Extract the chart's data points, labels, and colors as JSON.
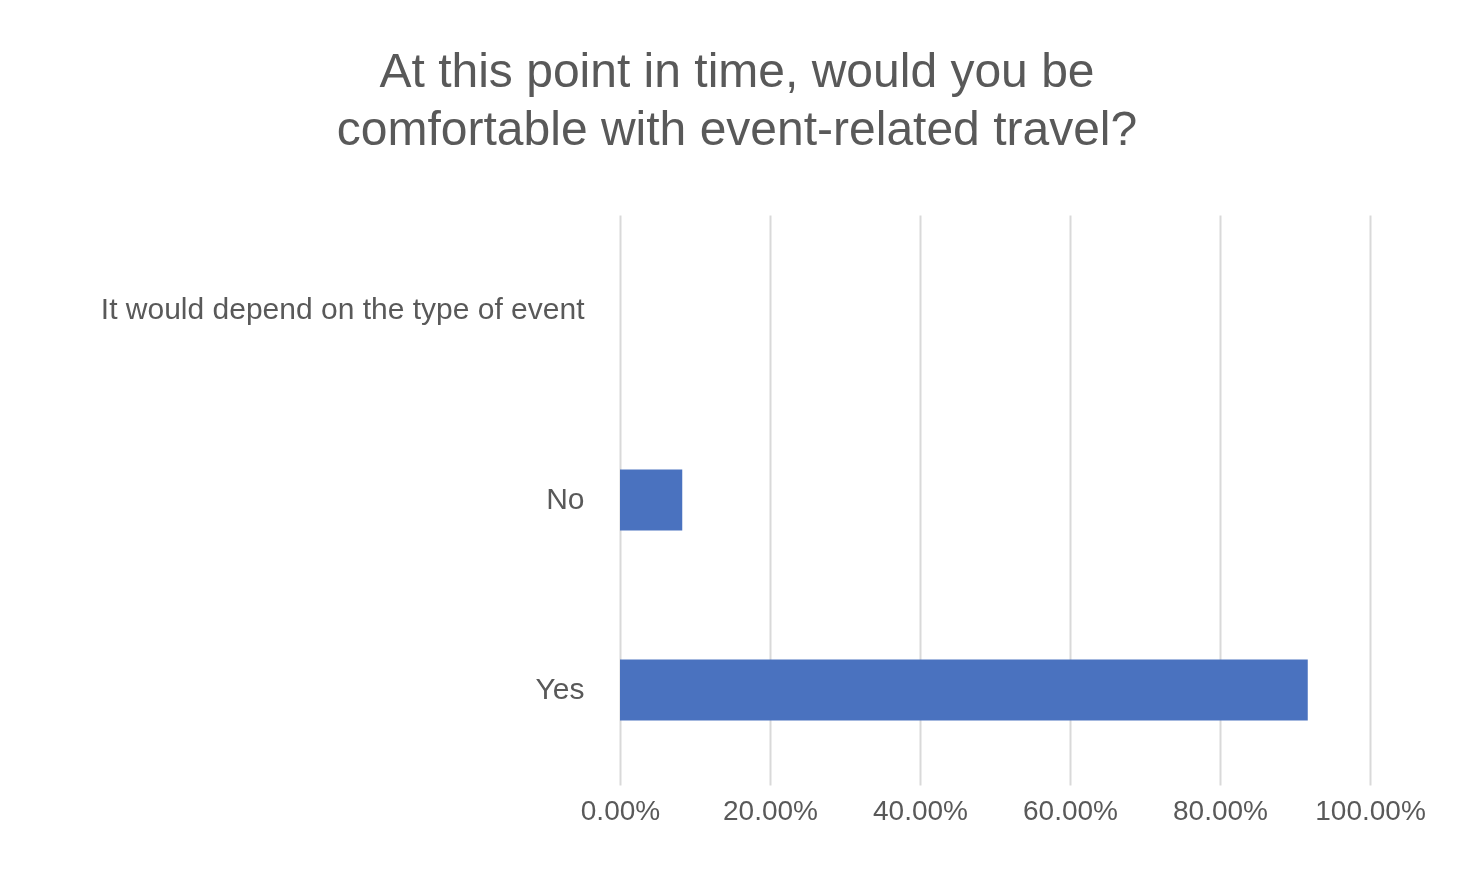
{
  "chart_data": {
    "type": "bar",
    "orientation": "horizontal",
    "title": "At this point in time, would you be comfortable with event-related travel?",
    "categories": [
      "It would depend on the type of event",
      "No",
      "Yes"
    ],
    "values": [
      0,
      8.3,
      91.7
    ],
    "color": "#4a72bf",
    "xlim": [
      0,
      100
    ],
    "xticks": [
      {
        "value": 0,
        "label": "0.00%"
      },
      {
        "value": 20,
        "label": "20.00%"
      },
      {
        "value": 40,
        "label": "40.00%"
      },
      {
        "value": 60,
        "label": "60.00%"
      },
      {
        "value": 80,
        "label": "80.00%"
      },
      {
        "value": 100,
        "label": "100.00%"
      }
    ],
    "grid": "x"
  }
}
